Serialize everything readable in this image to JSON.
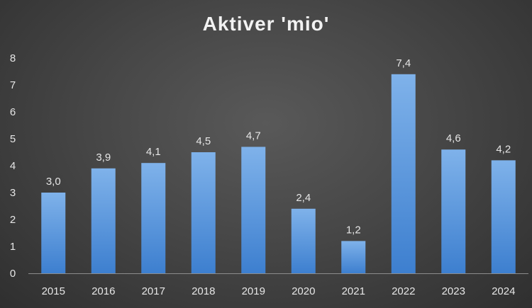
{
  "chart_data": {
    "type": "bar",
    "title": "Aktiver 'mio'",
    "categories": [
      "2015",
      "2016",
      "2017",
      "2018",
      "2019",
      "2020",
      "2021",
      "2022",
      "2023",
      "2024"
    ],
    "values": [
      3.0,
      3.9,
      4.1,
      4.5,
      4.7,
      2.4,
      1.2,
      7.4,
      4.6,
      4.2
    ],
    "data_labels": [
      "3,0",
      "3,9",
      "4,1",
      "4,5",
      "4,7",
      "2,4",
      "1,2",
      "7,4",
      "4,6",
      "4,2"
    ],
    "ylim": [
      0,
      8
    ],
    "yticks": [
      "0",
      "1",
      "2",
      "3",
      "4",
      "5",
      "6",
      "7",
      "8"
    ],
    "grid": false,
    "legend": "none",
    "colors": {
      "bar_top": "#7fb2ea",
      "bar_bottom": "#3d7fcf",
      "text": "#e6e6e6",
      "axis": "#8c8c8c"
    }
  }
}
